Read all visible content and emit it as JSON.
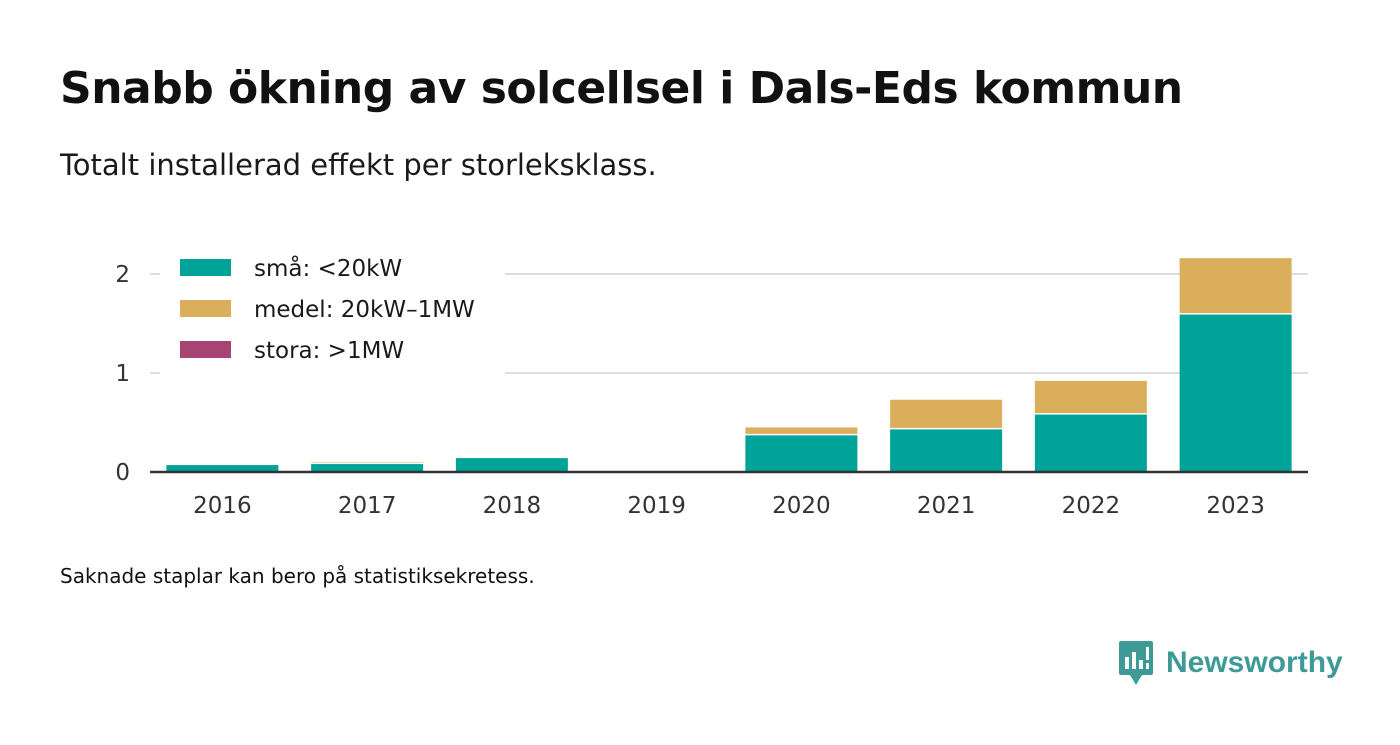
{
  "title": "Snabb ökning av solcellsel i Dals-Eds kommun",
  "subtitle": "Totalt installerad effekt per storleksklass.",
  "footnote": "Saknade staplar kan bero på statistiksekretess.",
  "brand": {
    "name": "Newsworthy",
    "logo_icon": "newsworthy-logo-icon",
    "color": "#3d9a96"
  },
  "chart_data": {
    "type": "bar",
    "stacked": true,
    "categories": [
      "2016",
      "2017",
      "2018",
      "2019",
      "2020",
      "2021",
      "2022",
      "2023"
    ],
    "series": [
      {
        "name": "små: <20kW",
        "color": "#00a398",
        "values": [
          0.07,
          0.08,
          0.14,
          0,
          0.37,
          0.43,
          0.58,
          1.59
        ]
      },
      {
        "name": "medel: 20kW–1MW",
        "color": "#dbae5c",
        "values": [
          0,
          0.02,
          0,
          0,
          0.08,
          0.3,
          0.34,
          0.57
        ]
      },
      {
        "name": "stora: >1MW",
        "color": "#a64473",
        "values": [
          0,
          0,
          0,
          0,
          0,
          0,
          0,
          0
        ]
      }
    ],
    "yticks": [
      0,
      1,
      2
    ],
    "ylim": [
      0,
      2.2
    ],
    "grid": true,
    "legend_position": "top-left"
  }
}
